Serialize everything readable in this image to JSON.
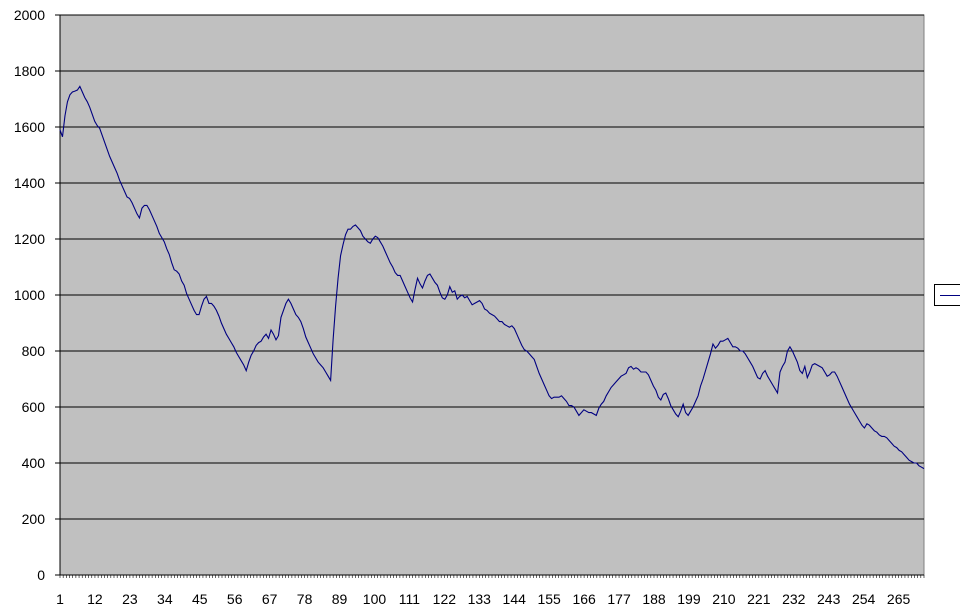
{
  "chart_data": {
    "type": "line",
    "title": "",
    "xlabel": "",
    "ylabel": "",
    "xlim": [
      1,
      273
    ],
    "ylim": [
      0,
      2000
    ],
    "grid": "horizontal",
    "legend": "right",
    "plot_background": "#c0c0c0",
    "line_color": "#000080",
    "y_ticks": [
      "0",
      "200",
      "400",
      "600",
      "800",
      "1000",
      "1200",
      "1400",
      "1600",
      "1800",
      "2000"
    ],
    "x_tick_labels": [
      "1",
      "12",
      "23",
      "34",
      "45",
      "56",
      "67",
      "78",
      "89",
      "100",
      "111",
      "122",
      "133",
      "144",
      "155",
      "166",
      "177",
      "188",
      "199",
      "210",
      "221",
      "232",
      "243",
      "254",
      "265"
    ],
    "series": [
      {
        "values": [
          1590,
          1565,
          1640,
          1690,
          1715,
          1725,
          1728,
          1732,
          1745,
          1725,
          1705,
          1690,
          1670,
          1645,
          1620,
          1605,
          1595,
          1570,
          1545,
          1520,
          1495,
          1475,
          1455,
          1435,
          1410,
          1390,
          1370,
          1350,
          1345,
          1330,
          1310,
          1290,
          1275,
          1310,
          1320,
          1320,
          1305,
          1285,
          1265,
          1245,
          1220,
          1205,
          1190,
          1165,
          1145,
          1115,
          1090,
          1085,
          1075,
          1050,
          1035,
          1005,
          985,
          965,
          945,
          930,
          930,
          960,
          985,
          995,
          970,
          970,
          960,
          945,
          925,
          900,
          880,
          860,
          845,
          830,
          815,
          795,
          780,
          765,
          750,
          730,
          760,
          785,
          800,
          820,
          830,
          835,
          850,
          860,
          845,
          875,
          860,
          840,
          855,
          920,
          945,
          970,
          985,
          970,
          950,
          930,
          920,
          905,
          880,
          850,
          830,
          810,
          790,
          775,
          760,
          750,
          740,
          725,
          710,
          695,
          840,
          960,
          1060,
          1140,
          1180,
          1215,
          1235,
          1235,
          1245,
          1250,
          1240,
          1230,
          1210,
          1200,
          1190,
          1185,
          1200,
          1210,
          1205,
          1190,
          1175,
          1155,
          1135,
          1115,
          1100,
          1080,
          1070,
          1070,
          1050,
          1030,
          1010,
          990,
          975,
          1020,
          1060,
          1040,
          1025,
          1050,
          1070,
          1075,
          1060,
          1045,
          1035,
          1010,
          990,
          985,
          1000,
          1030,
          1010,
          1015,
          985,
          995,
          1000,
          990,
          995,
          980,
          965,
          970,
          975,
          980,
          970,
          950,
          945,
          935,
          930,
          925,
          915,
          905,
          905,
          895,
          890,
          885,
          890,
          880,
          860,
          840,
          820,
          805,
          800,
          790,
          780,
          770,
          745,
          720,
          700,
          680,
          660,
          640,
          630,
          635,
          635,
          635,
          640,
          630,
          620,
          605,
          605,
          600,
          585,
          570,
          580,
          590,
          585,
          580,
          580,
          575,
          570,
          595,
          610,
          620,
          640,
          655,
          670,
          680,
          690,
          700,
          710,
          715,
          720,
          740,
          745,
          735,
          740,
          735,
          725,
          725,
          725,
          715,
          695,
          675,
          660,
          635,
          625,
          645,
          650,
          630,
          605,
          590,
          575,
          565,
          585,
          610,
          580,
          570,
          585,
          600,
          620,
          640,
          675,
          700,
          730,
          760,
          790,
          825,
          810,
          820,
          835,
          835,
          840,
          845,
          830,
          815,
          815,
          810,
          800,
          800,
          790,
          775,
          760,
          745,
          725,
          705,
          700,
          720,
          730,
          710,
          695,
          680,
          665,
          650,
          725,
          745,
          760,
          800,
          815,
          800,
          780,
          760,
          730,
          720,
          745,
          705,
          725,
          750,
          755,
          750,
          745,
          740,
          725,
          710,
          715,
          725,
          725,
          710,
          690,
          670,
          650,
          630,
          610,
          595,
          580,
          565,
          550,
          535,
          525,
          540,
          535,
          525,
          515,
          510,
          500,
          495,
          495,
          490,
          480,
          470,
          460,
          455,
          445,
          440,
          430,
          420,
          410,
          405,
          400,
          400,
          390,
          385,
          380
        ]
      }
    ]
  }
}
